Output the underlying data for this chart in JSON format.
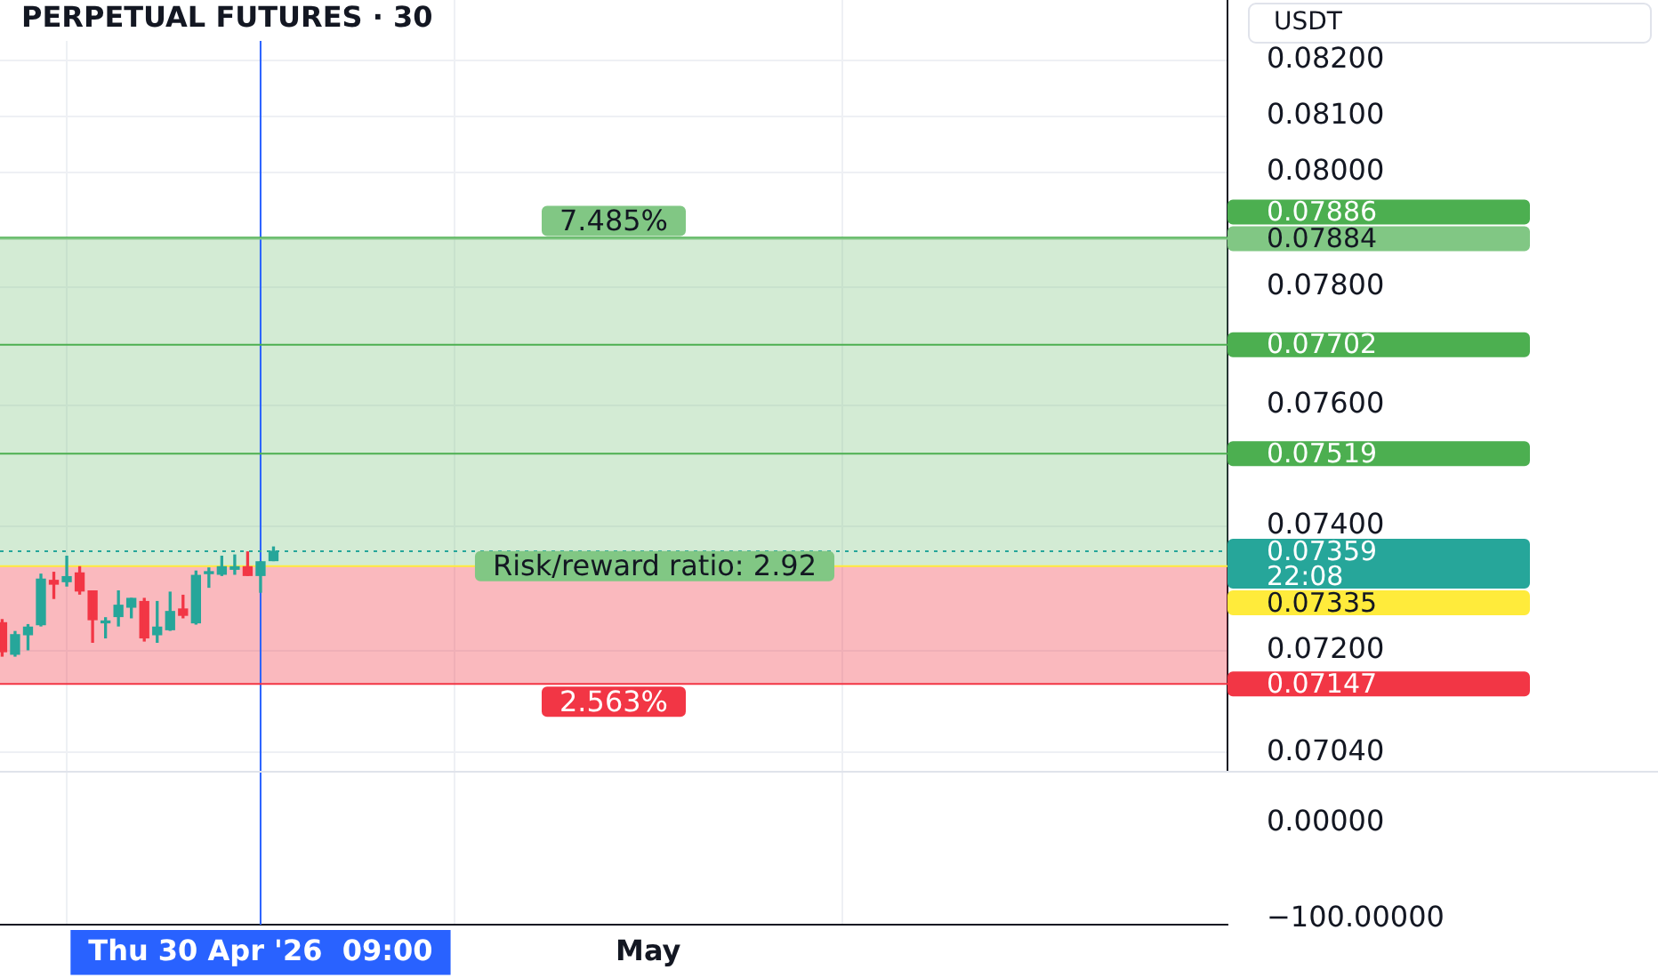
{
  "chart_data": {
    "type": "candlestick",
    "title": "PERPETUAL FUTURES · 30",
    "ylabel": "USDT",
    "x": [
      "2026-04-29T23:00",
      "2026-04-29T23:30",
      "2026-04-30T00:00",
      "2026-04-30T00:30",
      "2026-04-30T01:00",
      "2026-04-30T01:30",
      "2026-04-30T02:00",
      "2026-04-30T02:30",
      "2026-04-30T03:00",
      "2026-04-30T03:30",
      "2026-04-30T04:00",
      "2026-04-30T04:30",
      "2026-04-30T05:00",
      "2026-04-30T05:30",
      "2026-04-30T06:00",
      "2026-04-30T06:30",
      "2026-04-30T07:00",
      "2026-04-30T07:30",
      "2026-04-30T08:00",
      "2026-04-30T08:30",
      "2026-04-30T09:00",
      "2026-04-30T09:30"
    ],
    "ohlc": [
      [
        0.07244,
        0.07249,
        0.07191,
        0.07198
      ],
      [
        0.07194,
        0.0723,
        0.07191,
        0.07225
      ],
      [
        0.07225,
        0.07241,
        0.07201,
        0.07237
      ],
      [
        0.07241,
        0.07322,
        0.07239,
        0.07314
      ],
      [
        0.07312,
        0.07325,
        0.07283,
        0.07306
      ],
      [
        0.0731,
        0.07351,
        0.07303,
        0.07318
      ],
      [
        0.07324,
        0.07334,
        0.0729,
        0.07295
      ],
      [
        0.07295,
        0.07295,
        0.07213,
        0.07249
      ],
      [
        0.07244,
        0.07252,
        0.0722,
        0.07246
      ],
      [
        0.07254,
        0.07295,
        0.07239,
        0.07272
      ],
      [
        0.07269,
        0.07283,
        0.07252,
        0.07283
      ],
      [
        0.07278,
        0.07283,
        0.07215,
        0.0722
      ],
      [
        0.07225,
        0.07278,
        0.07213,
        0.07237
      ],
      [
        0.07233,
        0.07293,
        0.07232,
        0.07262
      ],
      [
        0.07266,
        0.07288,
        0.07252,
        0.07256
      ],
      [
        0.07244,
        0.07327,
        0.07242,
        0.0732
      ],
      [
        0.07323,
        0.07332,
        0.07301,
        0.07326
      ],
      [
        0.07322,
        0.07351,
        0.0732,
        0.07334
      ],
      [
        0.0733,
        0.07353,
        0.07322,
        0.07334
      ],
      [
        0.07334,
        0.07358,
        0.0732,
        0.0732
      ],
      [
        0.0732,
        0.07342,
        0.07293,
        0.07342
      ],
      [
        0.07344,
        0.07366,
        0.07344,
        0.07359
      ]
    ],
    "colors": [
      "#f23645",
      "#26a69a",
      "#26a69a",
      "#26a69a",
      "#f23645",
      "#26a69a",
      "#f23645",
      "#f23645",
      "#26a69a",
      "#26a69a",
      "#26a69a",
      "#f23645",
      "#26a69a",
      "#26a69a",
      "#f23645",
      "#26a69a",
      "#26a69a",
      "#26a69a",
      "#26a69a",
      "#f23645",
      "#26a69a",
      "#26a69a"
    ],
    "xlim": [
      "2026-04-29T22:55",
      "2026-05-01T22:25"
    ],
    "xticks": [
      {
        "value": "2026-04-30T09:00",
        "label": "Thu 30 Apr '26  09:00"
      },
      {
        "value": "2026-05-01",
        "label": "May"
      }
    ],
    "log": "y",
    "ylim": [
      0.0701,
      0.0831
    ],
    "yticks": [
      {
        "value": 0.0704,
        "label": "0.07040"
      },
      {
        "value": 0.072,
        "label": "0.07200"
      },
      {
        "value": 0.074,
        "label": "0.07400"
      },
      {
        "value": 0.076,
        "label": "0.07600"
      },
      {
        "value": 0.078,
        "label": "0.07800"
      },
      {
        "value": 0.08,
        "label": "0.08000"
      },
      {
        "value": 0.081,
        "label": "0.08100"
      },
      {
        "value": 0.082,
        "label": "0.08200"
      }
    ],
    "grid": true,
    "ref_lines": [
      {
        "axis": "x",
        "value": "2026-04-30T09:00",
        "color": "#2962ff",
        "line_style": "solid"
      },
      {
        "axis": "y",
        "value": 0.07886,
        "label": "0.07886",
        "color": "#4caf50",
        "line_style": "solid"
      },
      {
        "axis": "y",
        "value": 0.07884,
        "label": "0.07884",
        "color": "#81c784",
        "line_style": "solid"
      },
      {
        "axis": "y",
        "value": 0.07702,
        "label": "0.07702",
        "color": "#4caf50",
        "line_style": "solid"
      },
      {
        "axis": "y",
        "value": 0.07519,
        "label": "0.07519",
        "color": "#4caf50",
        "line_style": "solid"
      },
      {
        "axis": "y",
        "value": 0.07335,
        "label": "0.07335",
        "color": "#ffeb3b",
        "line_style": "solid"
      },
      {
        "axis": "y",
        "value": 0.07359,
        "label": "0.07359\n22:08",
        "color": "#26a69a",
        "line_style": "dotted"
      },
      {
        "axis": "y",
        "value": 0.07147,
        "label": "0.07147",
        "color": "#f23645",
        "line_style": "solid"
      }
    ],
    "bands": [
      {
        "axis": "y",
        "from": 0.07335,
        "to": 0.07884,
        "label": "7.485%",
        "color": "#81c784"
      },
      {
        "axis": "y",
        "from": 0.07335,
        "to": 0.07147,
        "label": "2.563%",
        "color": "#f23645"
      }
    ],
    "annotations": [
      {
        "text": "Risk/reward ratio: 2.92",
        "x": "2026-05-01T00:15",
        "y": 0.07335
      },
      "0.00000",
      "−100.00000"
    ],
    "legend": false
  }
}
